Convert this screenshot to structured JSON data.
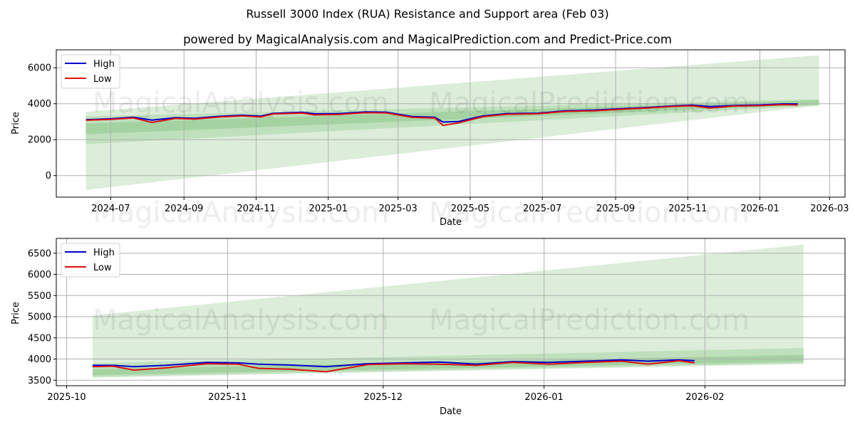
{
  "header": {
    "title": "Russell 3000 Index (RUA) Resistance and Support area (Feb 03)",
    "subtitle": "powered by MagicalAnalysis.com and MagicalPrediction.com and Predict-Price.com"
  },
  "watermarks": [
    "MagicalAnalysis.com",
    "MagicalPrediction.com"
  ],
  "colors": {
    "high": "#0000cc",
    "low": "#dd1111",
    "band_light": "#dcedda",
    "band_mid": "#b5dbb1",
    "band_dark": "#8ec98a",
    "grid": "#b0b0b0"
  },
  "legend": {
    "high": "High",
    "low": "Low"
  },
  "chart_data": [
    {
      "type": "line",
      "title": "Russell 3000 Index (RUA) Resistance and Support area (Feb 03) — full range",
      "xlabel": "Date",
      "ylabel": "Price",
      "ylim": [
        -1200,
        7000
      ],
      "xlim": [
        "2024-05-16",
        "2026-03-14"
      ],
      "grid": true,
      "legend_position": "upper left",
      "x_ticks": [
        "2024-07",
        "2024-09",
        "2024-11",
        "2025-01",
        "2025-03",
        "2025-05",
        "2025-07",
        "2025-09",
        "2025-11",
        "2026-01",
        "2026-03"
      ],
      "y_ticks": [
        0,
        2000,
        4000,
        6000
      ],
      "x": [
        "2024-06-10",
        "2024-07-01",
        "2024-07-20",
        "2024-08-05",
        "2024-08-25",
        "2024-09-10",
        "2024-10-01",
        "2024-10-20",
        "2024-11-05",
        "2024-11-15",
        "2024-12-10",
        "2024-12-20",
        "2025-01-10",
        "2025-02-01",
        "2025-02-19",
        "2025-03-13",
        "2025-04-01",
        "2025-04-08",
        "2025-04-21",
        "2025-05-12",
        "2025-06-01",
        "2025-06-27",
        "2025-07-20",
        "2025-08-15",
        "2025-09-05",
        "2025-10-01",
        "2025-10-20",
        "2025-11-05",
        "2025-11-20",
        "2025-12-10",
        "2026-01-01",
        "2026-01-20",
        "2026-02-02"
      ],
      "series": [
        {
          "name": "High",
          "values": [
            3110,
            3160,
            3250,
            3090,
            3220,
            3190,
            3300,
            3360,
            3310,
            3460,
            3520,
            3440,
            3450,
            3540,
            3530,
            3290,
            3250,
            2980,
            3010,
            3320,
            3450,
            3470,
            3600,
            3650,
            3720,
            3800,
            3880,
            3920,
            3840,
            3900,
            3930,
            3990,
            3990
          ]
        },
        {
          "name": "Low",
          "values": [
            3080,
            3130,
            3210,
            2960,
            3180,
            3140,
            3260,
            3320,
            3260,
            3430,
            3480,
            3380,
            3400,
            3500,
            3490,
            3240,
            3200,
            2790,
            2930,
            3280,
            3410,
            3440,
            3570,
            3610,
            3690,
            3770,
            3850,
            3880,
            3760,
            3870,
            3890,
            3950,
            3930
          ]
        }
      ],
      "bands": [
        {
          "name": "outer support/resistance",
          "start": {
            "date": "2024-06-10",
            "low": -800,
            "high": 3550
          },
          "end": {
            "date": "2026-02-20",
            "low": 3900,
            "high": 6700
          }
        },
        {
          "name": "mid band",
          "start": {
            "date": "2024-06-10",
            "low": 1750,
            "high": 3300
          },
          "end": {
            "date": "2026-02-20",
            "low": 3900,
            "high": 4250
          }
        },
        {
          "name": "inner band",
          "start": {
            "date": "2024-06-10",
            "low": 2300,
            "high": 2900
          },
          "end": {
            "date": "2026-02-20",
            "low": 3950,
            "high": 4200
          }
        }
      ]
    },
    {
      "type": "line",
      "title": "Zoomed recent range",
      "xlabel": "Date",
      "ylabel": "Price",
      "ylim": [
        3370,
        6850
      ],
      "xlim": [
        "2025-09-29",
        "2026-02-28"
      ],
      "grid": true,
      "legend_position": "upper left",
      "x_ticks": [
        "2025-10",
        "2025-11",
        "2025-12",
        "2026-01",
        "2026-02"
      ],
      "y_ticks": [
        3500,
        4000,
        4500,
        5000,
        5500,
        6000,
        6500
      ],
      "x": [
        "2025-10-06",
        "2025-10-10",
        "2025-10-14",
        "2025-10-20",
        "2025-10-28",
        "2025-11-03",
        "2025-11-07",
        "2025-11-13",
        "2025-11-20",
        "2025-11-28",
        "2025-12-05",
        "2025-12-12",
        "2025-12-19",
        "2025-12-26",
        "2026-01-02",
        "2026-01-09",
        "2026-01-16",
        "2026-01-21",
        "2026-01-27",
        "2026-01-30"
      ],
      "series": [
        {
          "name": "High",
          "values": [
            3850,
            3850,
            3820,
            3850,
            3920,
            3910,
            3880,
            3860,
            3820,
            3890,
            3910,
            3930,
            3880,
            3940,
            3920,
            3950,
            3980,
            3950,
            3980,
            3960
          ]
        },
        {
          "name": "Low",
          "values": [
            3820,
            3830,
            3740,
            3790,
            3890,
            3880,
            3780,
            3760,
            3700,
            3870,
            3890,
            3880,
            3850,
            3920,
            3880,
            3920,
            3950,
            3880,
            3960,
            3910
          ]
        }
      ],
      "bands": [
        {
          "name": "outer support/resistance",
          "start": {
            "date": "2025-10-06",
            "low": 3560,
            "high": 5030
          },
          "end": {
            "date": "2026-02-20",
            "low": 3880,
            "high": 6700
          }
        },
        {
          "name": "mid band",
          "start": {
            "date": "2025-10-06",
            "low": 3580,
            "high": 3900
          },
          "end": {
            "date": "2026-02-20",
            "low": 3900,
            "high": 4260
          }
        },
        {
          "name": "inner band",
          "start": {
            "date": "2025-10-06",
            "low": 3620,
            "high": 3760
          },
          "end": {
            "date": "2026-02-20",
            "low": 3940,
            "high": 4100
          }
        }
      ]
    }
  ]
}
